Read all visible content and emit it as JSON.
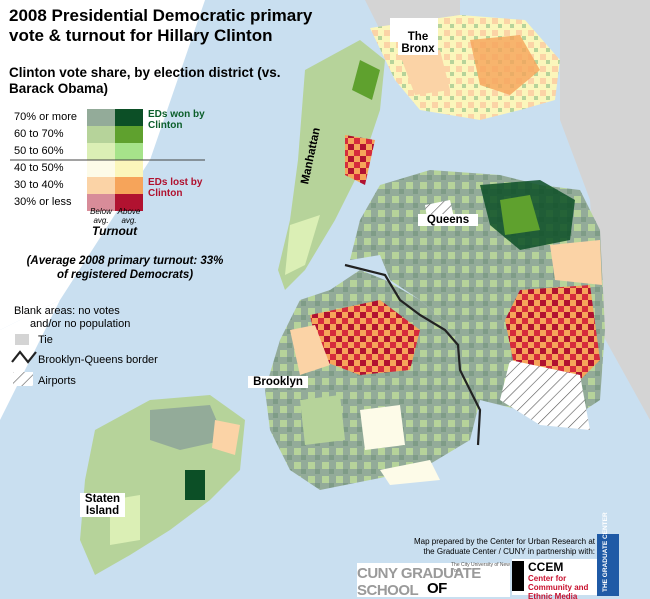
{
  "title": "2008 Presidential Democratic primary vote & turnout for Hillary Clinton",
  "subtitle": "Clinton vote share, by election district (vs. Barack Obama)",
  "legend": {
    "rows": [
      "70% or more",
      "60 to 70%",
      "50 to 60%",
      "40 to 50%",
      "30 to 40%",
      "30% or less"
    ],
    "won_label": "EDs won by Clinton",
    "lost_label": "EDs lost by Clinton",
    "below_label": "Below avg.",
    "above_label": "Above avg.",
    "axis_label": "Turnout",
    "colors_below": [
      "#93ab99",
      "#b6d39a",
      "#dbefb5",
      "#fdfbe8",
      "#fbd3a6",
      "#d88c99"
    ],
    "colors_above": [
      "#0c4f26",
      "#5fa12e",
      "#a6e38a",
      "#fbf6bb",
      "#f6a45a",
      "#b11230"
    ]
  },
  "average_note": "(Average 2008 primary turnout: 33% of registered Democrats)",
  "notes": {
    "blank_line1": "Blank areas: no votes",
    "blank_line2": "and/or no population",
    "tie": "Tie",
    "border": "Brooklyn-Queens border",
    "airports": "Airports"
  },
  "places": {
    "bronx": "The Bronx",
    "manhattan": "Manhattan",
    "queens": "Queens",
    "brooklyn": "Brooklyn",
    "staten": "Staten Island"
  },
  "credit": "Map prepared by the Center for Urban Research at the Graduate Center / CUNY in partnership with:",
  "logos": {
    "cuny_top": "The City University of New York",
    "cuny_a": "CUNY GRADUATE SCHOOL",
    "cuny_b": "OF JOURNALISM",
    "ccem_a": "CCEM",
    "ccem_b": "Center for Community and Ethnic Media",
    "gc": "THE GRADUATE CENTER"
  },
  "colors": {
    "water": "#c9dff0",
    "land_outside": "#d4d4d4"
  }
}
